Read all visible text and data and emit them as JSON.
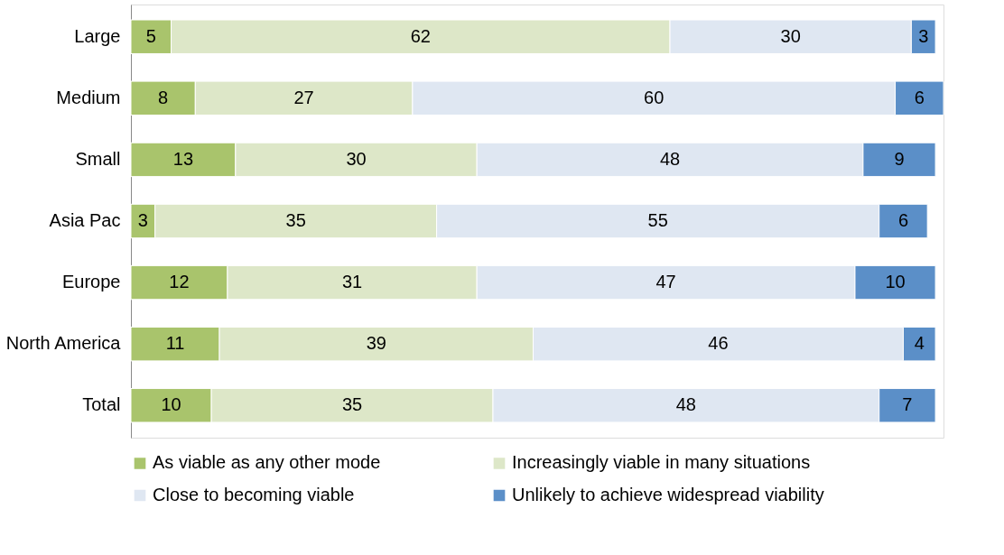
{
  "chart_data": {
    "type": "bar",
    "orientation": "horizontal",
    "stacked": true,
    "data_labels": true,
    "legend": "bottom",
    "grid": false,
    "categories": [
      "Large",
      "Medium",
      "Small",
      "Asia Pac",
      "Europe",
      "North America",
      "Total"
    ],
    "series": [
      {
        "name": "As viable as any other mode",
        "color": "#a9c46c",
        "values": [
          5,
          8,
          13,
          3,
          12,
          11,
          10
        ]
      },
      {
        "name": "Increasingly viable in many situations",
        "color": "#dde7c8",
        "values": [
          62,
          27,
          30,
          35,
          31,
          39,
          35
        ]
      },
      {
        "name": "Close to becoming viable",
        "color": "#dfe7f2",
        "values": [
          30,
          60,
          48,
          55,
          47,
          46,
          48
        ]
      },
      {
        "name": "Unlikely to achieve widespread viability",
        "color": "#5b8fc8",
        "values": [
          3,
          6,
          9,
          6,
          10,
          4,
          7
        ]
      }
    ]
  }
}
